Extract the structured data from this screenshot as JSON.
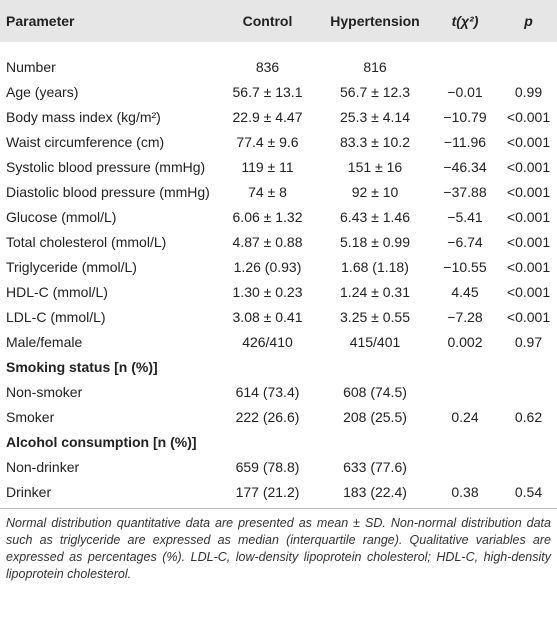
{
  "table": {
    "columns": [
      "Parameter",
      "Control",
      "Hypertension",
      "t(χ²)",
      "p"
    ],
    "rows": [
      [
        "Number",
        "836",
        "816"
      ],
      [
        "Age (years)",
        "56.7 ± 13.1",
        "56.7 ± 12.3",
        "−0.01",
        "0.99"
      ],
      [
        "Body mass index (kg/m²)",
        "22.9 ± 4.47",
        "25.3 ± 4.14",
        "−10.79",
        "<0.001"
      ],
      [
        "Waist circumference (cm)",
        "77.4 ± 9.6",
        "83.3 ± 10.2",
        "−11.96",
        "<0.001"
      ],
      [
        "Systolic blood pressure (mmHg)",
        "119 ± 11",
        "151 ± 16",
        "−46.34",
        "<0.001"
      ],
      [
        "Diastolic blood pressure (mmHg)",
        "74 ± 8",
        "92 ± 10",
        "−37.88",
        "<0.001"
      ],
      [
        "Glucose (mmol/L)",
        "6.06 ± 1.32",
        "6.43 ± 1.46",
        "−5.41",
        "<0.001"
      ],
      [
        "Total cholesterol (mmol/L)",
        "4.87 ± 0.88",
        "5.18 ± 0.99",
        "−6.74",
        "<0.001"
      ],
      [
        "Triglyceride (mmol/L)",
        "1.26 (0.93)",
        "1.68 (1.18)",
        "−10.55",
        "<0.001"
      ],
      [
        "HDL-C (mmol/L)",
        "1.30 ± 0.23",
        "1.24 ± 0.31",
        "4.45",
        "<0.001"
      ],
      [
        "LDL-C (mmol/L)",
        "3.08 ± 0.41",
        "3.25 ± 0.55",
        "−7.28",
        "<0.001"
      ],
      [
        "Male/female",
        "426/410",
        "415/401",
        "0.002",
        "0.97"
      ],
      [
        "Smoking status [n (%)]"
      ],
      [
        "Non-smoker",
        "614 (73.4)",
        "608 (74.5)"
      ],
      [
        "Smoker",
        "222 (26.6)",
        "208 (25.5)",
        "0.24",
        "0.62"
      ],
      [
        "Alcohol consumption [n (%)]"
      ],
      [
        "Non-drinker",
        "659 (78.8)",
        "633 (77.6)"
      ],
      [
        "Drinker",
        "177 (21.2)",
        "183 (22.4)",
        "0.38",
        "0.54"
      ]
    ],
    "note": "Normal distribution quantitative data are presented as mean ± SD. Non-normal distribution data such as triglyceride are expressed as median (interquartile range). Qualitative variables are expressed as percentages (%). LDL-C, low-density lipoprotein cholesterol; HDL-C, high-density lipoprotein cholesterol."
  }
}
